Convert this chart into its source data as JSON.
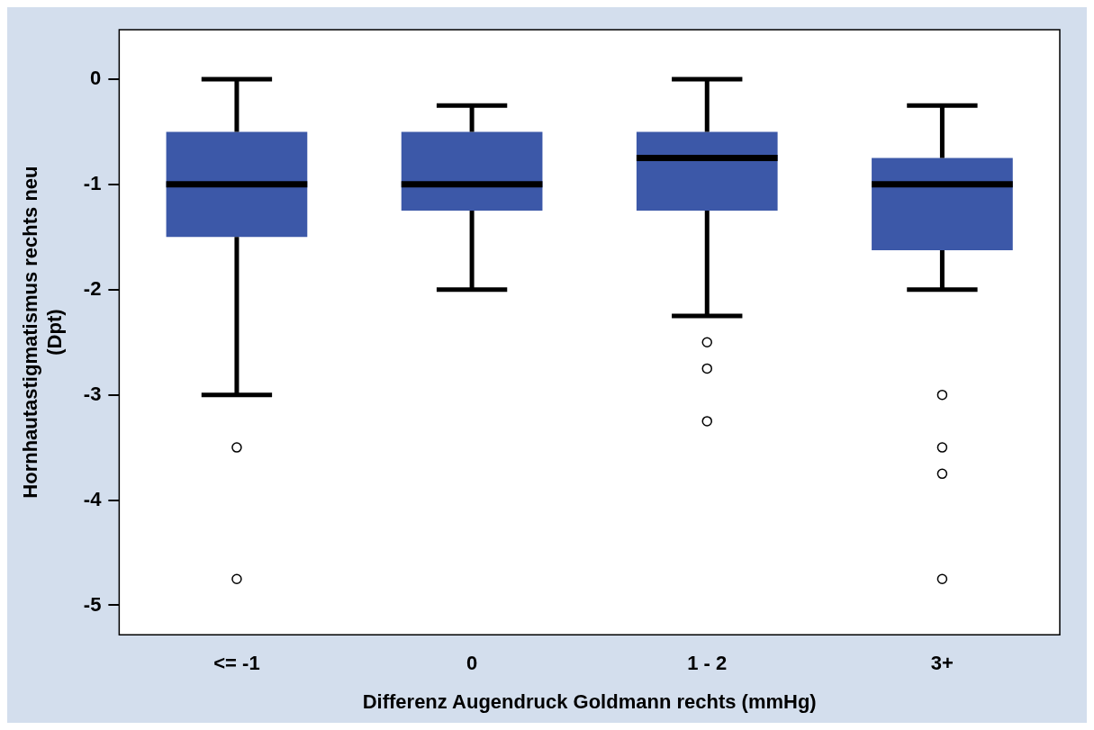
{
  "chart_data": {
    "type": "box",
    "xlabel": "Differenz Augendruck Goldmann rechts (mmHg)",
    "ylabel": "Hornhautastigmatismus rechts neu\n(Dpt)",
    "categories": [
      "<= -1",
      "0",
      "1 - 2",
      "3+"
    ],
    "color": "#3c58a8",
    "boxes": [
      {
        "low": -3,
        "q1": -1.5,
        "median": -1,
        "q3": -0.5,
        "high": 0,
        "outliers": [
          -3.5,
          -4.75
        ]
      },
      {
        "low": -2,
        "q1": -1.25,
        "median": -1,
        "q3": -0.5,
        "high": -0.25
      },
      {
        "low": -2.25,
        "q1": -1.25,
        "median": -0.75,
        "q3": -0.5,
        "high": 0,
        "outliers": [
          -2.5,
          -2.75,
          -3.25
        ]
      },
      {
        "low": -2,
        "q1": -1.625,
        "median": -1,
        "q3": -0.75,
        "high": -0.25,
        "outliers": [
          -3,
          -3.5,
          -3.75,
          -4.75
        ]
      }
    ],
    "ylim": [
      -5.28,
      0.47
    ],
    "yticks": [
      0,
      -1,
      -2,
      -3,
      -4,
      -5
    ],
    "grid": false,
    "legend": false
  }
}
